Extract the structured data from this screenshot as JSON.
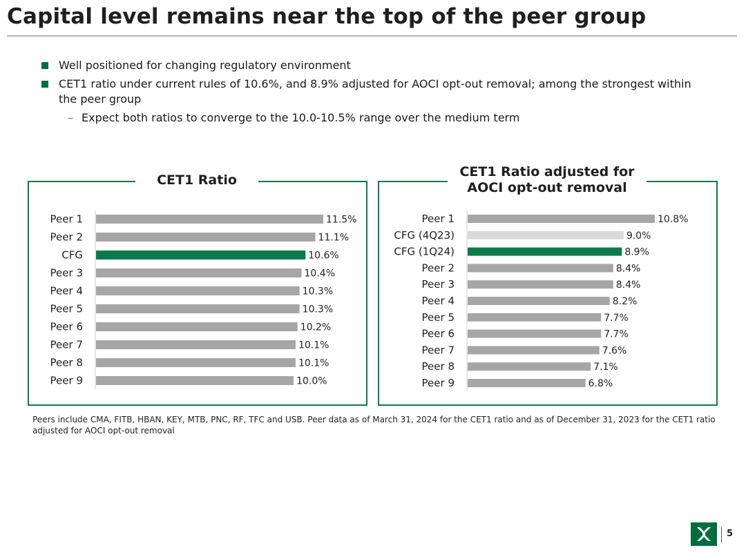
{
  "title": "Capital level remains near the top of the peer group",
  "bullets": [
    "Well positioned for changing regulatory environment",
    "CET1 ratio under current rules of 10.6%, and 8.9% adjusted for AOCI opt-out removal; among the strongest within the peer group"
  ],
  "sub_bullet": "Expect both ratios to converge to the 10.0-10.5% range over the medium term",
  "colors": {
    "accent": "#006d3f",
    "bar": "#a6a6a6",
    "highlight": "#0c7a4a",
    "light": "#dadada"
  },
  "chart_data": [
    {
      "type": "bar",
      "orientation": "horizontal",
      "title": "CET1 Ratio",
      "categories": [
        "Peer 1",
        "Peer 2",
        "CFG",
        "Peer 3",
        "Peer 4",
        "Peer 5",
        "Peer 6",
        "Peer 7",
        "Peer 8",
        "Peer 9"
      ],
      "values": [
        11.5,
        11.1,
        10.6,
        10.4,
        10.3,
        10.3,
        10.2,
        10.1,
        10.1,
        10.0
      ],
      "labels": [
        "11.5%",
        "11.1%",
        "10.6%",
        "10.4%",
        "10.3%",
        "10.3%",
        "10.2%",
        "10.1%",
        "10.1%",
        "10.0%"
      ],
      "bar_colors": [
        "#a6a6a6",
        "#a6a6a6",
        "#0c7a4a",
        "#a6a6a6",
        "#a6a6a6",
        "#a6a6a6",
        "#a6a6a6",
        "#a6a6a6",
        "#a6a6a6",
        "#a6a6a6"
      ],
      "xlim": [
        0,
        11.5
      ]
    },
    {
      "type": "bar",
      "orientation": "horizontal",
      "title": "CET1 Ratio adjusted for AOCI opt-out removal",
      "categories": [
        "Peer 1",
        "CFG (4Q23)",
        "CFG (1Q24)",
        "Peer 2",
        "Peer 3",
        "Peer 4",
        "Peer 5",
        "Peer 6",
        "Peer 7",
        "Peer 8",
        "Peer 9"
      ],
      "values": [
        10.8,
        9.0,
        8.9,
        8.4,
        8.4,
        8.2,
        7.7,
        7.7,
        7.6,
        7.1,
        6.8
      ],
      "labels": [
        "10.8%",
        "9.0%",
        "8.9%",
        "8.4%",
        "8.4%",
        "8.2%",
        "7.7%",
        "7.7%",
        "7.6%",
        "7.1%",
        "6.8%"
      ],
      "bar_colors": [
        "#a6a6a6",
        "#dadada",
        "#0c7a4a",
        "#a6a6a6",
        "#a6a6a6",
        "#a6a6a6",
        "#a6a6a6",
        "#a6a6a6",
        "#a6a6a6",
        "#a6a6a6",
        "#a6a6a6"
      ],
      "xlim": [
        0,
        10.8
      ]
    }
  ],
  "footnote": "Peers include CMA, FITB, HBAN, KEY, MTB, PNC, RF, TFC and USB. Peer data as of March 31, 2024 for the CET1 ratio and as of December 31, 2023 for the CET1 ratio adjusted for AOCI opt-out removal",
  "page_number": "5"
}
